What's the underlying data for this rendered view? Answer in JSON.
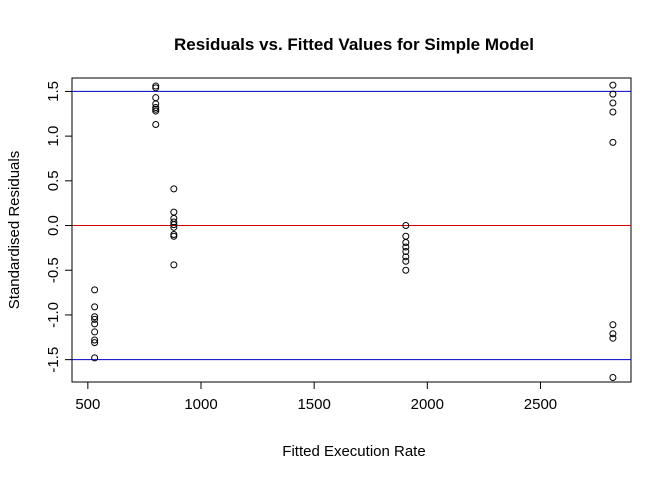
{
  "chart_data": {
    "type": "scatter",
    "title": "Residuals vs. Fitted Values for Simple Model",
    "xlabel": "Fitted Execution Rate",
    "ylabel": "Standardised Residuals",
    "xlim": [
      430,
      2900
    ],
    "ylim": [
      -1.75,
      1.65
    ],
    "x_ticks": [
      500,
      1000,
      1500,
      2000,
      2500
    ],
    "y_ticks": [
      -1.5,
      -1.0,
      -0.5,
      0.0,
      0.5,
      1.0,
      1.5
    ],
    "x_tick_labels": [
      "500",
      "1000",
      "1500",
      "2000",
      "2500"
    ],
    "y_tick_labels": [
      "-1.5",
      "-1.0",
      "-0.5",
      "0.0",
      "0.5",
      "1.0",
      "1.5"
    ],
    "grid": false,
    "reference_lines": [
      {
        "y": 1.5,
        "color": "#0000cc"
      },
      {
        "y": 0.0,
        "color": "#dd0000"
      },
      {
        "y": -1.5,
        "color": "#0000cc"
      }
    ],
    "marker_color": "#000000",
    "points": [
      {
        "x": 530,
        "y": -0.72
      },
      {
        "x": 530,
        "y": -0.91
      },
      {
        "x": 530,
        "y": -1.02
      },
      {
        "x": 530,
        "y": -1.05
      },
      {
        "x": 530,
        "y": -1.1
      },
      {
        "x": 530,
        "y": -1.19
      },
      {
        "x": 530,
        "y": -1.28
      },
      {
        "x": 530,
        "y": -1.31
      },
      {
        "x": 530,
        "y": -1.48
      },
      {
        "x": 800,
        "y": 1.56
      },
      {
        "x": 800,
        "y": 1.54
      },
      {
        "x": 800,
        "y": 1.43
      },
      {
        "x": 800,
        "y": 1.36
      },
      {
        "x": 800,
        "y": 1.32
      },
      {
        "x": 800,
        "y": 1.3
      },
      {
        "x": 800,
        "y": 1.28
      },
      {
        "x": 800,
        "y": 1.13
      },
      {
        "x": 880,
        "y": 0.41
      },
      {
        "x": 880,
        "y": 0.15
      },
      {
        "x": 880,
        "y": 0.08
      },
      {
        "x": 880,
        "y": 0.04
      },
      {
        "x": 880,
        "y": 0.01
      },
      {
        "x": 880,
        "y": -0.02
      },
      {
        "x": 880,
        "y": -0.1
      },
      {
        "x": 880,
        "y": -0.12
      },
      {
        "x": 880,
        "y": -0.44
      },
      {
        "x": 1905,
        "y": 0.0
      },
      {
        "x": 1905,
        "y": -0.12
      },
      {
        "x": 1905,
        "y": -0.19
      },
      {
        "x": 1905,
        "y": -0.24
      },
      {
        "x": 1905,
        "y": -0.29
      },
      {
        "x": 1905,
        "y": -0.35
      },
      {
        "x": 1905,
        "y": -0.4
      },
      {
        "x": 1905,
        "y": -0.5
      },
      {
        "x": 2820,
        "y": 1.57
      },
      {
        "x": 2820,
        "y": 1.47
      },
      {
        "x": 2820,
        "y": 1.37
      },
      {
        "x": 2820,
        "y": 1.27
      },
      {
        "x": 2820,
        "y": 0.93
      },
      {
        "x": 2820,
        "y": -1.11
      },
      {
        "x": 2820,
        "y": -1.21
      },
      {
        "x": 2820,
        "y": -1.26
      },
      {
        "x": 2820,
        "y": -1.7
      }
    ]
  }
}
